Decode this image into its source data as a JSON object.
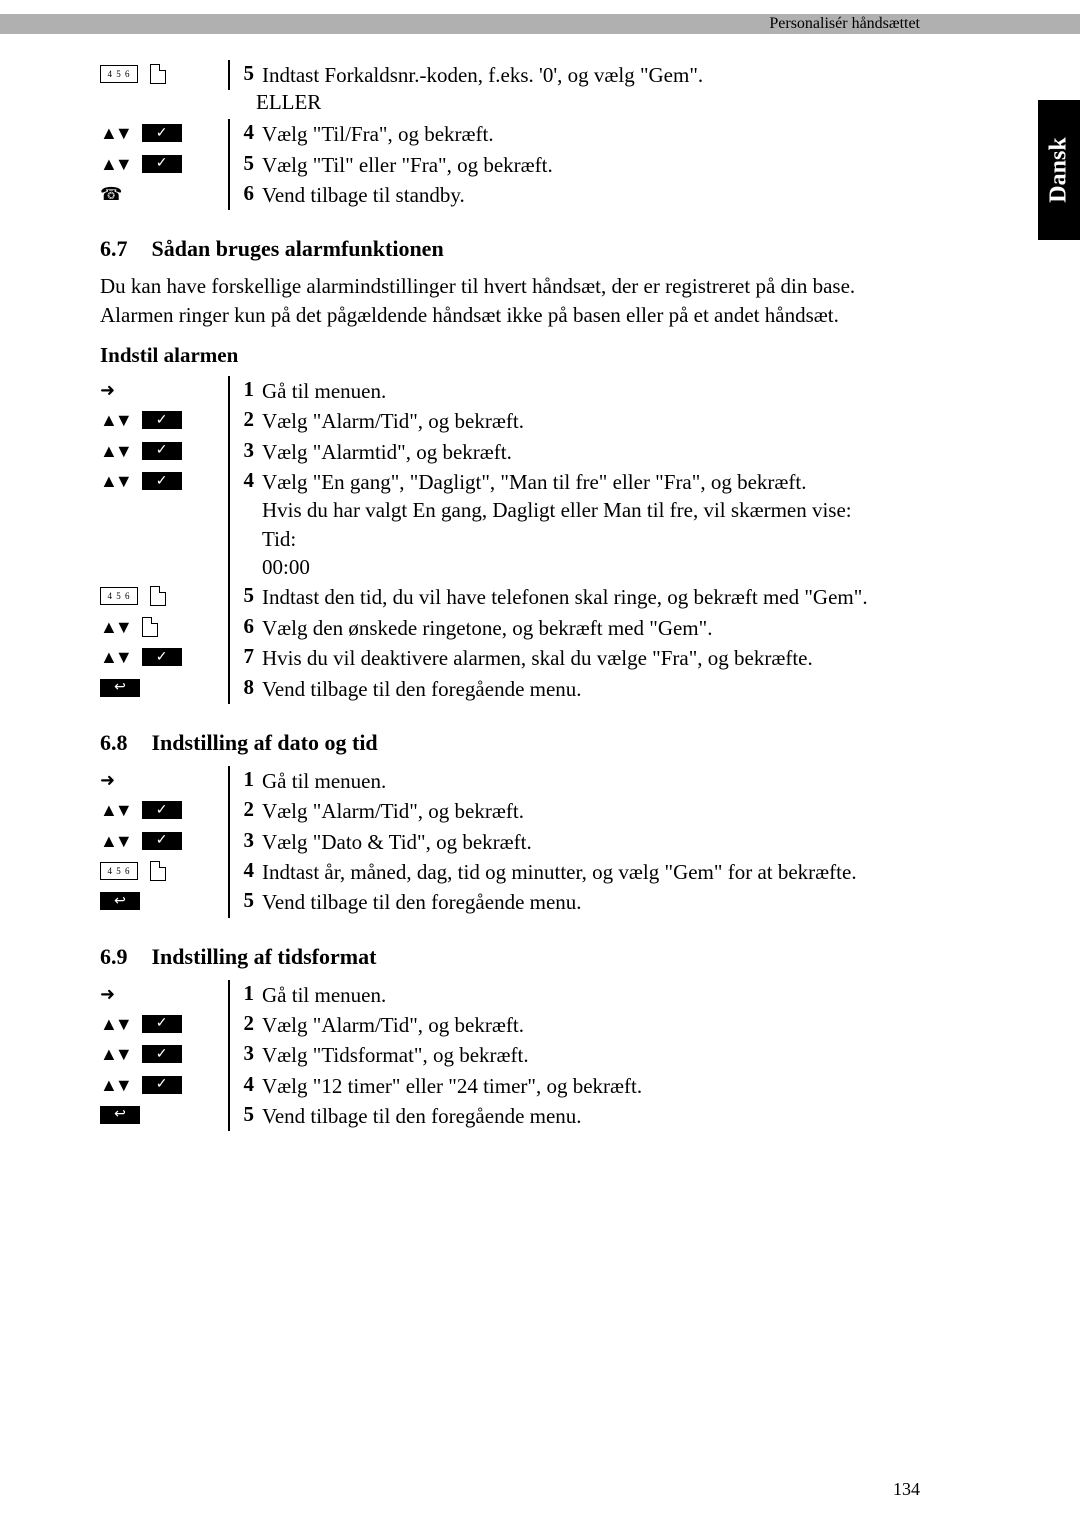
{
  "header": {
    "breadcrumb": "Personalisér håndsættet"
  },
  "side_tab": "Dansk",
  "or": "ELLER",
  "cont": [
    {
      "n": "5",
      "t": "Indtast Forkaldsnr.-koden, f.eks. '0', og vælg \"Gem\"."
    },
    {
      "n": "4",
      "t": "Vælg \"Til/Fra\", og bekræft."
    },
    {
      "n": "5",
      "t": "Vælg \"Til\" eller \"Fra\", og bekræft."
    },
    {
      "n": "6",
      "t": "Vend tilbage til standby."
    }
  ],
  "s67": {
    "num": "6.7",
    "title": "Sådan bruges alarmfunktionen",
    "intro": "Du kan have forskellige alarmindstillinger til hvert håndsæt, der er registreret på din base. Alarmen ringer kun på det pågældende håndsæt ikke på basen eller på et andet håndsæt.",
    "sub": "Indstil alarmen",
    "steps": [
      {
        "n": "1",
        "t": "Gå til menuen."
      },
      {
        "n": "2",
        "t": "Vælg \"Alarm/Tid\", og bekræft."
      },
      {
        "n": "3",
        "t": "Vælg \"Alarmtid\", og bekræft."
      },
      {
        "n": "4",
        "t": "Vælg \"En gang\", \"Dagligt\", \"Man til fre\" eller \"Fra\", og bekræft.\nHvis du har valgt En gang, Dagligt eller Man til fre, vil skærmen vise:\nTid:\n00:00"
      },
      {
        "n": "5",
        "t": "Indtast den tid, du vil have telefonen skal ringe, og bekræft med \"Gem\"."
      },
      {
        "n": "6",
        "t": "Vælg den ønskede ringetone, og bekræft med \"Gem\"."
      },
      {
        "n": "7",
        "t": "Hvis du vil deaktivere alarmen, skal du vælge \"Fra\", og bekræfte."
      },
      {
        "n": "8",
        "t": "Vend tilbage til den foregående menu."
      }
    ]
  },
  "s68": {
    "num": "6.8",
    "title": "Indstilling af dato og tid",
    "steps": [
      {
        "n": "1",
        "t": "Gå til menuen."
      },
      {
        "n": "2",
        "t": "Vælg \"Alarm/Tid\", og bekræft."
      },
      {
        "n": "3",
        "t": "Vælg \"Dato & Tid\", og bekræft."
      },
      {
        "n": "4",
        "t": "Indtast år, måned, dag, tid og minutter, og vælg \"Gem\" for at bekræfte."
      },
      {
        "n": "5",
        "t": "Vend tilbage til den foregående menu."
      }
    ]
  },
  "s69": {
    "num": "6.9",
    "title": "Indstilling af tidsformat",
    "steps": [
      {
        "n": "1",
        "t": "Gå til menuen."
      },
      {
        "n": "2",
        "t": "Vælg \"Alarm/Tid\", og bekræft."
      },
      {
        "n": "3",
        "t": "Vælg \"Tidsformat\", og bekræft."
      },
      {
        "n": "4",
        "t": "Vælg \"12 timer\" eller \"24 timer\", og bekræft."
      },
      {
        "n": "5",
        "t": "Vend tilbage til den foregående menu."
      }
    ]
  },
  "page_number": "134",
  "colors": {
    "bar": "#b0b0b0",
    "tab": "#000000",
    "text": "#000000",
    "bg": "#ffffff"
  },
  "typography": {
    "body_pt": 16,
    "heading_pt": 17,
    "family": "Times New Roman"
  }
}
